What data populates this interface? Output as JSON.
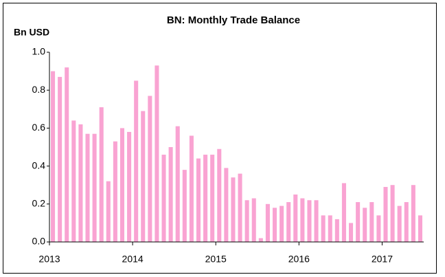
{
  "chart_data": {
    "type": "bar",
    "title": "BN: Monthly Trade Balance",
    "y_label": "Bn USD",
    "categories": [
      "2013",
      null,
      null,
      null,
      null,
      null,
      null,
      null,
      null,
      null,
      null,
      null,
      "2014",
      null,
      null,
      null,
      null,
      null,
      null,
      null,
      null,
      null,
      null,
      null,
      "2015",
      null,
      null,
      null,
      null,
      null,
      null,
      null,
      null,
      null,
      null,
      null,
      "2016",
      null,
      null,
      null,
      null,
      null,
      null,
      null,
      null,
      null,
      null,
      null,
      "2017",
      null,
      null,
      null,
      null,
      null
    ],
    "values": [
      0.9,
      0.87,
      0.92,
      0.64,
      0.62,
      0.57,
      0.57,
      0.71,
      0.32,
      0.53,
      0.6,
      0.58,
      0.85,
      0.69,
      0.77,
      0.93,
      0.46,
      0.5,
      0.61,
      0.38,
      0.56,
      0.44,
      0.46,
      0.46,
      0.49,
      0.39,
      0.34,
      0.36,
      0.22,
      0.23,
      0.02,
      0.2,
      0.18,
      0.19,
      0.21,
      0.25,
      0.23,
      0.22,
      0.22,
      0.14,
      0.14,
      0.12,
      0.31,
      0.1,
      0.21,
      0.18,
      0.21,
      0.14,
      0.29,
      0.3,
      0.19,
      0.21,
      0.3,
      0.14
    ],
    "color": "#f9a3d2",
    "ylim": [
      0,
      1
    ],
    "yticks": [
      {
        "value": 0,
        "label": "0.0"
      },
      0.2,
      0.4,
      0.6,
      0.8,
      {
        "value": 1,
        "label": "1.0"
      }
    ],
    "grid": false
  }
}
